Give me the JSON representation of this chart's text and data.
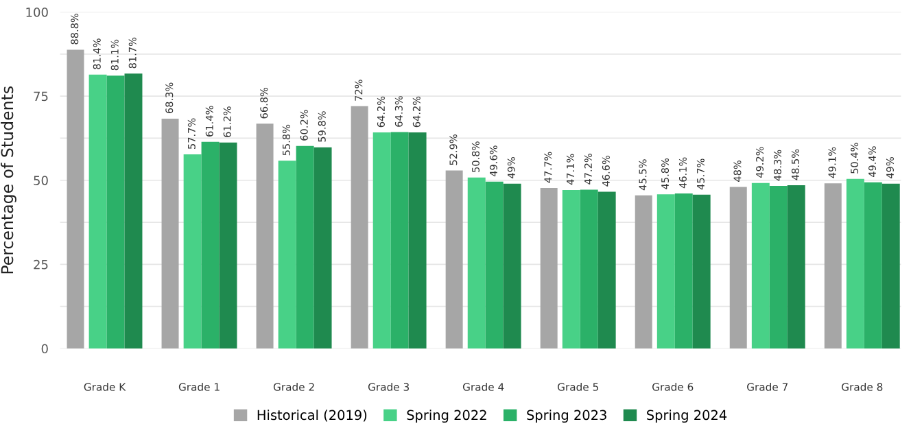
{
  "chart_data": {
    "type": "bar",
    "ylabel": "Percentage of Students",
    "categories": [
      "Grade K",
      "Grade 1",
      "Grade 2",
      "Grade 3",
      "Grade 4",
      "Grade 5",
      "Grade 6",
      "Grade 7",
      "Grade 8"
    ],
    "series": [
      {
        "name": "Historical (2019)",
        "color": "#a6a6a6",
        "values": [
          88.8,
          68.3,
          66.8,
          72,
          52.9,
          47.7,
          45.5,
          48,
          49.1
        ],
        "value_labels": [
          "88.8%",
          "68.3%",
          "66.8%",
          "72%",
          "52.9%",
          "47.7%",
          "45.5%",
          "48%",
          "49.1%"
        ]
      },
      {
        "name": "Spring 2022",
        "color": "#48d187",
        "values": [
          81.4,
          57.7,
          55.8,
          64.2,
          50.8,
          47.1,
          45.8,
          49.2,
          50.4
        ],
        "value_labels": [
          "81.4%",
          "57.7%",
          "55.8%",
          "64.2%",
          "50.8%",
          "47.1%",
          "45.8%",
          "49.2%",
          "50.4%"
        ]
      },
      {
        "name": "Spring 2023",
        "color": "#2bb168",
        "values": [
          81.1,
          61.4,
          60.2,
          64.3,
          49.6,
          47.2,
          46.1,
          48.3,
          49.4
        ],
        "value_labels": [
          "81.1%",
          "61.4%",
          "60.2%",
          "64.3%",
          "49.6%",
          "47.2%",
          "46.1%",
          "48.3%",
          "49.4%"
        ]
      },
      {
        "name": "Spring 2024",
        "color": "#1f8a4f",
        "values": [
          81.7,
          61.2,
          59.8,
          64.2,
          49,
          46.6,
          45.7,
          48.5,
          49
        ],
        "value_labels": [
          "81.7%",
          "61.2%",
          "59.8%",
          "64.2%",
          "49%",
          "46.6%",
          "45.7%",
          "48.5%",
          "49%"
        ]
      }
    ],
    "ylim": [
      0,
      100
    ],
    "yticks": [
      0,
      {
        "value": 12.5,
        "label": null
      },
      25,
      {
        "value": 37.5,
        "label": null
      },
      50,
      {
        "value": 62.5,
        "label": null
      },
      75,
      {
        "value": 87.5,
        "label": null
      },
      100
    ],
    "grid": "y",
    "legend": "bottom"
  }
}
